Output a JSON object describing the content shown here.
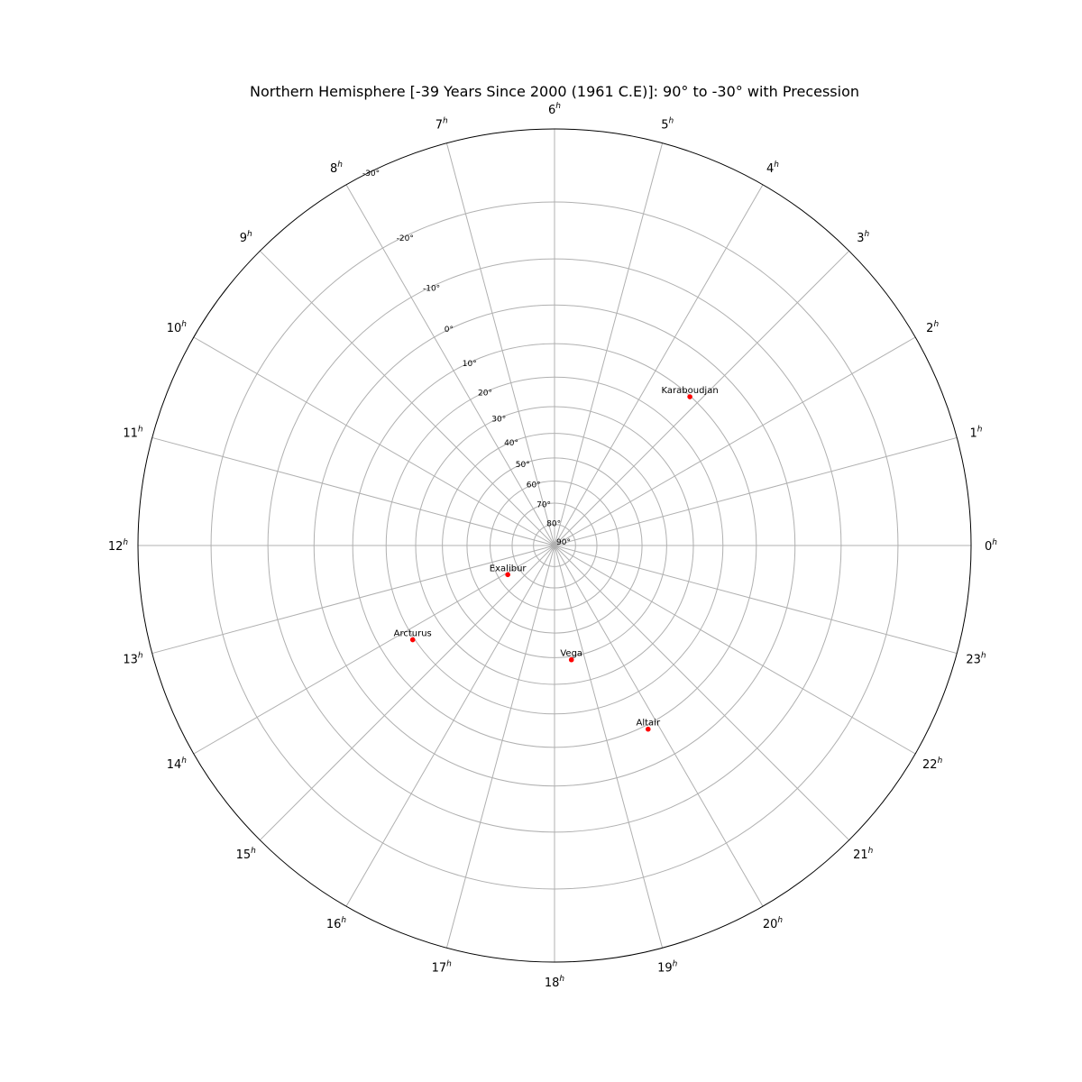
{
  "chart_data": {
    "type": "scatter",
    "projection": "polar-stereographic",
    "title": "Northern Hemisphere [-39 Years Since 2000 (1961 C.E)]: 90° to -30° with Precession",
    "angular_axis": {
      "unit": "h",
      "ticks": [
        "0",
        "1",
        "2",
        "3",
        "4",
        "5",
        "6",
        "7",
        "8",
        "9",
        "10",
        "11",
        "12",
        "13",
        "14",
        "15",
        "16",
        "17",
        "18",
        "19",
        "20",
        "21",
        "22",
        "23"
      ],
      "direction": "counterclockwise",
      "zero_location": "right"
    },
    "radial_axis": {
      "range": [
        90,
        -30
      ],
      "ticks": [
        90,
        80,
        70,
        60,
        50,
        40,
        30,
        20,
        10,
        0,
        -10,
        -20,
        -30
      ],
      "tick_labels": [
        "90°",
        "80°",
        "70°",
        "60°",
        "50°",
        "40°",
        "30°",
        "20°",
        "10°",
        "0°",
        "-10°",
        "-20°",
        "-30°"
      ]
    },
    "grid": true,
    "marker_color": "#ff0000",
    "points": [
      {
        "name": "Karaboudjan",
        "ra_hours": 3.18,
        "dec": 10.2
      },
      {
        "name": "Exalibur",
        "ra_hours": 14.13,
        "dec": 64.2
      },
      {
        "name": "Arcturus",
        "ra_hours": 14.24,
        "dec": 19.4
      },
      {
        "name": "Vega",
        "ra_hours": 18.56,
        "dec": 38.7
      },
      {
        "name": "Altair",
        "ra_hours": 19.8,
        "dec": 8.8
      }
    ]
  }
}
